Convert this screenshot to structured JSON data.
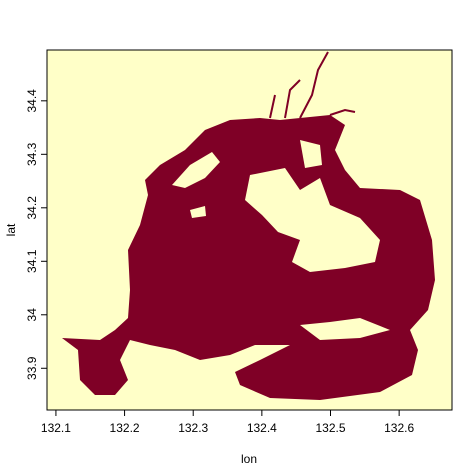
{
  "chart_data": {
    "type": "map",
    "xlabel": "lon",
    "ylabel": "lat",
    "xlim": [
      132.087,
      132.677
    ],
    "ylim": [
      33.822,
      34.495
    ],
    "xticks": [
      132.1,
      132.2,
      132.3,
      132.4,
      132.5,
      132.6
    ],
    "yticks": [
      33.9,
      34.0,
      34.1,
      34.2,
      34.3,
      34.4
    ],
    "land_color": "#ffffc8",
    "sea_color": "#7f0026"
  }
}
